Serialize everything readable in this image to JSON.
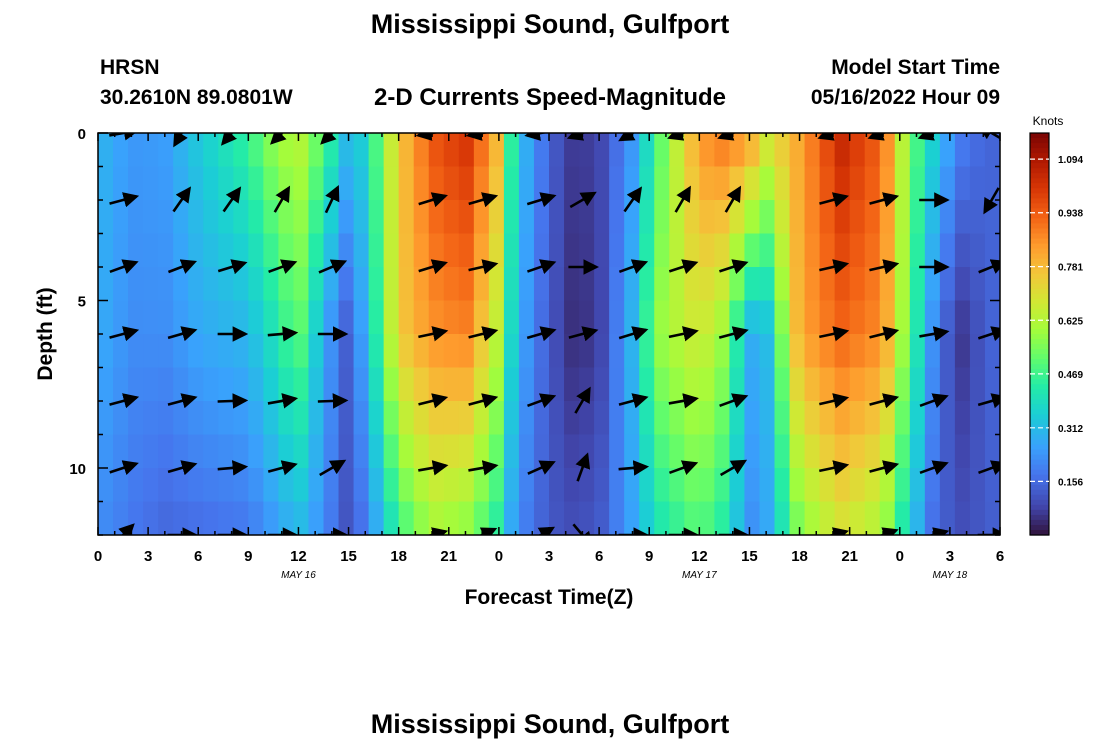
{
  "header": {
    "title": "Mississippi Sound, Gulfport",
    "station": "HRSN",
    "coordinates": "30.2610N  89.0801W",
    "subtitle": "2-D Currents Speed-Magnitude",
    "model_start_label": "Model Start Time",
    "model_start_value": "05/16/2022 Hour 09",
    "footer_title": "Mississippi Sound, Gulfport"
  },
  "chart_data": {
    "type": "heatmap",
    "title": "2-D Currents Speed-Magnitude",
    "xlabel": "Forecast Time(Z)",
    "ylabel": "Depth (ft)",
    "colorbar_label": "Knots",
    "colorbar_ticks": [
      "1.094",
      "0.938",
      "0.781",
      "0.625",
      "0.469",
      "0.312",
      "0.156"
    ],
    "colorbar_tick_values": [
      1.094,
      0.938,
      0.781,
      0.625,
      0.469,
      0.312,
      0.156
    ],
    "colorbar_range": [
      0,
      1.17
    ],
    "x_range_hours": [
      0,
      54
    ],
    "y_range_ft": [
      0,
      12
    ],
    "x_ticks": [
      {
        "h": 0,
        "label": "0"
      },
      {
        "h": 3,
        "label": "3"
      },
      {
        "h": 6,
        "label": "6"
      },
      {
        "h": 9,
        "label": "9"
      },
      {
        "h": 12,
        "label": "12"
      },
      {
        "h": 15,
        "label": "15"
      },
      {
        "h": 18,
        "label": "18"
      },
      {
        "h": 21,
        "label": "21"
      },
      {
        "h": 24,
        "label": "0"
      },
      {
        "h": 27,
        "label": "3"
      },
      {
        "h": 30,
        "label": "6"
      },
      {
        "h": 33,
        "label": "9"
      },
      {
        "h": 36,
        "label": "12"
      },
      {
        "h": 39,
        "label": "15"
      },
      {
        "h": 42,
        "label": "18"
      },
      {
        "h": 45,
        "label": "21"
      },
      {
        "h": 48,
        "label": "0"
      },
      {
        "h": 51,
        "label": "3"
      },
      {
        "h": 54,
        "label": "6"
      }
    ],
    "y_ticks": [
      {
        "v": 0,
        "label": "0"
      },
      {
        "v": 5,
        "label": "5"
      },
      {
        "v": 10,
        "label": "10"
      }
    ],
    "date_labels": [
      {
        "h": 12,
        "label": "MAY 16"
      },
      {
        "h": 36,
        "label": "MAY 17"
      },
      {
        "h": 51,
        "label": "MAY 18"
      }
    ],
    "speed_keyframes_hours": [
      0,
      2,
      4,
      6,
      9,
      10.5,
      12,
      13.5,
      14.8,
      16,
      18,
      20,
      22,
      23.8,
      25,
      27,
      28.5,
      30,
      32,
      33.5,
      36,
      37.5,
      39,
      40,
      42,
      44.5,
      47,
      48.5,
      50,
      51.5,
      53,
      54
    ],
    "speed_keyframes_knots": {
      "surface": [
        0.3,
        0.24,
        0.25,
        0.34,
        0.46,
        0.58,
        0.64,
        0.5,
        0.32,
        0.36,
        0.75,
        0.95,
        1.02,
        0.82,
        0.35,
        0.14,
        0.06,
        0.08,
        0.24,
        0.48,
        0.85,
        0.9,
        0.85,
        0.7,
        0.82,
        1.05,
        0.92,
        0.55,
        0.36,
        0.2,
        0.15,
        0.14
      ],
      "mid": [
        0.28,
        0.22,
        0.22,
        0.27,
        0.3,
        0.4,
        0.52,
        0.28,
        0.13,
        0.28,
        0.75,
        0.85,
        0.88,
        0.66,
        0.3,
        0.12,
        0.04,
        0.07,
        0.3,
        0.58,
        0.68,
        0.58,
        0.28,
        0.3,
        0.82,
        0.92,
        0.86,
        0.52,
        0.22,
        0.05,
        0.12,
        0.16
      ],
      "bottom": [
        0.22,
        0.18,
        0.15,
        0.16,
        0.18,
        0.24,
        0.3,
        0.22,
        0.11,
        0.18,
        0.45,
        0.6,
        0.56,
        0.44,
        0.22,
        0.12,
        0.1,
        0.12,
        0.26,
        0.4,
        0.5,
        0.42,
        0.22,
        0.26,
        0.55,
        0.68,
        0.6,
        0.36,
        0.16,
        0.1,
        0.12,
        0.14
      ]
    },
    "vector_rows_ft": [
      0,
      2,
      4,
      6,
      8,
      10,
      12
    ],
    "vector_columns_hours": [
      1.5,
      5,
      8,
      11,
      14,
      20,
      23,
      26.5,
      29,
      32,
      35,
      38,
      44,
      47,
      50,
      53.5
    ],
    "vector_directions_deg": [
      [
        10,
        240,
        230,
        225,
        225,
        190,
        190,
        190,
        200,
        210,
        200,
        200,
        200,
        200,
        200,
        150
      ],
      [
        15,
        55,
        55,
        60,
        65,
        17,
        16,
        17,
        30,
        55,
        60,
        60,
        15,
        15,
        0,
        240
      ],
      [
        20,
        21,
        17,
        20,
        23,
        17,
        13,
        19,
        0,
        20,
        18,
        18,
        13,
        13,
        0,
        22
      ],
      [
        15,
        16,
        0,
        5,
        0,
        12,
        14,
        16,
        15,
        17,
        12,
        15,
        12,
        14,
        10,
        18
      ],
      [
        15,
        15,
        2,
        10,
        2,
        14,
        15,
        20,
        60,
        15,
        10,
        20,
        13,
        15,
        20,
        16
      ],
      [
        18,
        16,
        5,
        15,
        30,
        10,
        10,
        24,
        70,
        5,
        20,
        30,
        12,
        15,
        20,
        20
      ],
      [
        45,
        0,
        0,
        0,
        0,
        15,
        25,
        30,
        310,
        0,
        0,
        0,
        15,
        20,
        15,
        0
      ]
    ]
  }
}
